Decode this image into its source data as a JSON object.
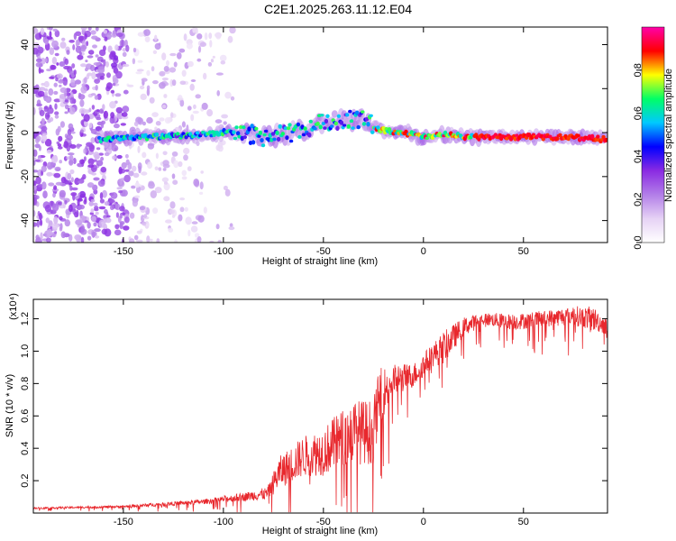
{
  "figure_title": "C2E1.2025.263.11.12.E04",
  "chart_data": [
    {
      "type": "heatmap",
      "title": "C2E1.2025.263.11.12.E04",
      "xlabel": "Height of straight line (km)",
      "ylabel": "Frequency (Hz)",
      "xlim": [
        -195,
        92
      ],
      "ylim": [
        -50,
        48
      ],
      "x_ticks": [
        -150,
        -100,
        -50,
        0,
        50
      ],
      "x_tick_labels": [
        "-150",
        "-100",
        "-50",
        "0",
        "50"
      ],
      "y_ticks": [
        -40,
        -20,
        0,
        20,
        40
      ],
      "y_tick_labels": [
        "-40",
        "-20",
        "0",
        "20",
        "40"
      ],
      "colorbar": {
        "label": "Normalized spectral amplitude",
        "range": [
          0,
          1
        ],
        "ticks": [
          0.0,
          0.2,
          0.4,
          0.6,
          0.8
        ],
        "tick_labels": [
          "0.0",
          "0.2",
          "0.4",
          "0.6",
          "0.8"
        ],
        "colormap": [
          "#ffffff",
          "#e6d2f5",
          "#b27ee8",
          "#8a2be2",
          "#0000ff",
          "#00c8ff",
          "#00ff66",
          "#ffff00",
          "#ff0000",
          "#ff00aa"
        ]
      },
      "ridge": [
        [
          -160,
          -3
        ],
        [
          -140,
          -2
        ],
        [
          -120,
          -1.5
        ],
        [
          -100,
          0
        ],
        [
          -90,
          0
        ],
        [
          -80,
          -2
        ],
        [
          -70,
          -1
        ],
        [
          -60,
          1
        ],
        [
          -50,
          5
        ],
        [
          -40,
          6
        ],
        [
          -30,
          6
        ],
        [
          -25,
          3
        ],
        [
          -20,
          1
        ],
        [
          -10,
          0
        ],
        [
          0,
          -2
        ],
        [
          10,
          -1
        ],
        [
          25,
          -2
        ],
        [
          50,
          -2
        ],
        [
          75,
          -2
        ],
        [
          90,
          -3
        ]
      ]
    },
    {
      "type": "line",
      "xlabel": "Height of straight line (km)",
      "ylabel": "SNR (10 * v/v)",
      "y_scale_label": "(x10⁴)",
      "xlim": [
        -195,
        92
      ],
      "ylim": [
        0,
        1.32
      ],
      "x_ticks": [
        -150,
        -100,
        -50,
        0,
        50
      ],
      "x_tick_labels": [
        "-150",
        "-100",
        "-50",
        "0",
        "50"
      ],
      "y_ticks": [
        0.2,
        0.4,
        0.6,
        0.8,
        1.0,
        1.2
      ],
      "y_tick_labels": [
        "0.2",
        "0.4",
        "0.6",
        "0.8",
        "1.0",
        "1.2"
      ],
      "series": [
        {
          "name": "SNR",
          "color": "#e8282d",
          "envelope": [
            [
              -195,
              0.03,
              0.01
            ],
            [
              -150,
              0.04,
              0.015
            ],
            [
              -110,
              0.07,
              0.03
            ],
            [
              -90,
              0.1,
              0.05
            ],
            [
              -78,
              0.12,
              0.08
            ],
            [
              -72,
              0.25,
              0.2
            ],
            [
              -60,
              0.35,
              0.25
            ],
            [
              -50,
              0.38,
              0.3
            ],
            [
              -42,
              0.45,
              0.35
            ],
            [
              -35,
              0.5,
              0.4
            ],
            [
              -25,
              0.5,
              0.4
            ],
            [
              -22,
              0.72,
              0.35
            ],
            [
              -15,
              0.82,
              0.2
            ],
            [
              -5,
              0.85,
              0.15
            ],
            [
              5,
              0.98,
              0.15
            ],
            [
              10,
              1.02,
              0.2
            ],
            [
              20,
              1.15,
              0.12
            ],
            [
              30,
              1.2,
              0.08
            ],
            [
              45,
              1.18,
              0.1
            ],
            [
              60,
              1.2,
              0.1
            ],
            [
              75,
              1.22,
              0.12
            ],
            [
              85,
              1.2,
              0.15
            ],
            [
              92,
              1.15,
              0.1
            ]
          ]
        }
      ]
    }
  ]
}
